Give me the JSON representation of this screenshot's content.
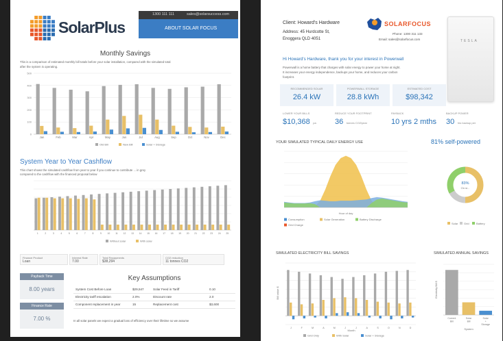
{
  "left": {
    "logo": {
      "text": "SolarPlus"
    },
    "contact": {
      "phone": "1300 111 111",
      "email": "sales@solarsuccess.com",
      "about": "ABOUT SOLAR FOCUS"
    },
    "monthly": {
      "title": "Monthly Savings",
      "desc1": "This is a comparison of estimated monthly bill totals before your solar installation, compared with the simulated total",
      "desc2": "after the system is operating.",
      "chart_data": {
        "type": "bar",
        "categories": [
          "Jan",
          "Feb",
          "Mar",
          "Apr",
          "May",
          "Jun",
          "Jul",
          "Aug",
          "Sep",
          "Oct",
          "Nov",
          "Dec"
        ],
        "ylim": [
          0,
          500
        ],
        "ticks": [
          "0",
          "100",
          "200",
          "300",
          "400",
          "500"
        ],
        "series": [
          {
            "name": "Old Bill",
            "color": "#a9a9a9",
            "values": [
              412,
              380,
              365,
              352,
              395,
              405,
              410,
              380,
              372,
              385,
              390,
              410
            ]
          },
          {
            "name": "New Bill",
            "color": "#e8c067",
            "values": [
              68,
              55,
              50,
              70,
              120,
              150,
              160,
              120,
              70,
              60,
              55,
              62
            ]
          },
          {
            "name": "Solar + Storage",
            "color": "#4a8fd0",
            "values": [
              25,
              20,
              18,
              22,
              38,
              48,
              52,
              35,
              20,
              16,
              18,
              22
            ]
          }
        ]
      }
    },
    "cashflow": {
      "title": "System Year to Year Cashflow",
      "desc1": "This chart shows the simulated cashflow from year to year if you continue to contribute ... in grey",
      "desc2": "compared to the cashflow with the financed proposal below",
      "chart_data": {
        "type": "bar",
        "categories": [
          "1",
          "2",
          "3",
          "4",
          "5",
          "6",
          "7",
          "8",
          "9",
          "10",
          "11",
          "12",
          "13",
          "14",
          "15",
          "16",
          "17",
          "18",
          "19",
          "20",
          "21",
          "22",
          "23",
          "24",
          "25"
        ],
        "ylim": [
          0,
          9
        ],
        "series": [
          {
            "name": "Without solar",
            "color": "#a9a9a9",
            "values": [
              5.8,
              5.9,
              6.0,
              6.1,
              6.2,
              6.3,
              6.4,
              6.5,
              6.6,
              6.7,
              6.8,
              6.9,
              7.0,
              7.1,
              7.2,
              7.3,
              7.4,
              7.5,
              7.6,
              7.7,
              7.8,
              7.9,
              8.0,
              8.1,
              8.2
            ]
          },
          {
            "name": "With solar",
            "color": "#e8c067",
            "values": [
              5.9,
              5.9,
              5.8,
              5.8,
              5.8,
              5.7,
              5.8,
              5.6,
              1.0,
              1.0,
              1.0,
              1.0,
              1.0,
              1.0,
              1.0,
              1.0,
              1.0,
              1.0,
              1.0,
              1.0,
              1.0,
              1.0,
              1.0,
              1.0,
              1.0
            ]
          }
        ]
      }
    },
    "summary": [
      {
        "label": "Finance Product",
        "value": "Loan"
      },
      {
        "label": "Interest Rate",
        "value": "7.00"
      },
      {
        "label": "Total Repayments",
        "value": "$38,294"
      },
      {
        "label": "CO2 reduction",
        "value": "11 tonnes CO2"
      }
    ],
    "payback_box": {
      "label": "Payback Time",
      "value": "8.00 years"
    },
    "rate_box": {
      "label": "Finance Rate",
      "value": "7.00 %"
    },
    "assumptions": {
      "title": "Key Assumptions",
      "rows": [
        {
          "c1": "System Cost Before Loan",
          "c2": "$29,547",
          "c3": "Solar Feed in Tariff",
          "c4": "0.10"
        },
        {
          "c1": "Electricity tariff escalation",
          "c2": "2.0%",
          "c3": "Discount rate",
          "c4": "2.0"
        },
        {
          "c1": "Component replacement in year",
          "c2": "15",
          "c3": "Replacement cost",
          "c4": "$3,600"
        }
      ],
      "note": "In all solar panels we expect a gradual loss of efficiency over their lifetime so we assume"
    }
  },
  "right": {
    "client": "Client: Howard's Hardware",
    "address1": "Address: 45 Hurdcotte St,",
    "address2": "Enoggera QLD 4051",
    "brand": "SOLARFOCUS",
    "phone": "Phone: 1300 311 133",
    "email": "Email: sales@solarfocus.com",
    "product": "TESLA",
    "greeting": "Hi Howard's Hardware, thank you for your interest in Powerwall",
    "intro1": "Powerwall is a home battery that charges with solar energy to power your home at night.",
    "intro2": "It increases your energy independence, backups your home, and reduces your carbon",
    "intro3": "footprint.",
    "metrics1": [
      {
        "label": "RECOMMENDED SOLAR",
        "value": "26.4 kW"
      },
      {
        "label": "POWERWALL STORAGE",
        "value": "28.8 kWh"
      },
      {
        "label": "ESTIMATED COST",
        "value": "$98,342"
      }
    ],
    "metrics2": [
      {
        "label": "LOWER YOUR BILLS",
        "value": "$10,368",
        "unit": "pa"
      },
      {
        "label": "REDUCE YOUR FOOTPRINT",
        "value": "36",
        "unit": "tonnes CO2/year"
      },
      {
        "label": "PAYBACK",
        "value": "10 yrs 2 mths",
        "unit": ""
      },
      {
        "label": "BACKUP POWER",
        "value": "30",
        "unit": "hrs backup per"
      }
    ],
    "energy": {
      "title": "YOUR SIMULATED TYPICAL DAILY ENERGY USE",
      "selfpowered": "81% self-powered",
      "xlabel": "Hour of day",
      "legend": [
        "Consumption",
        "Solar Generation",
        "Battery Discharge",
        "Grid Charge"
      ],
      "chart_data": {
        "type": "area",
        "x": [
          0,
          1,
          2,
          3,
          4,
          5,
          6,
          7,
          8,
          9,
          10,
          11,
          12,
          13,
          14,
          15,
          16,
          17,
          18,
          19,
          20,
          21,
          22,
          23,
          24
        ],
        "xlim": [
          0,
          24
        ],
        "ylim": [
          0,
          25
        ],
        "series": [
          {
            "name": "Solar Generation",
            "color": "#f0c04a",
            "values": [
              0,
              0,
              0,
              0,
              0,
              0,
              0.5,
              3,
              8,
              14,
              19,
              22,
              23,
              22,
              19,
              14,
              8,
              3,
              0.5,
              0,
              0,
              0,
              0,
              0,
              0
            ]
          },
          {
            "name": "Consumption",
            "color": "#7aaee0",
            "values": [
              2.5,
              2.2,
              2.0,
              2.0,
              2.0,
              2.2,
              2.8,
              3.2,
              3.0,
              2.8,
              2.8,
              3.0,
              3.0,
              3.0,
              3.2,
              3.4,
              3.6,
              4.2,
              4.6,
              4.4,
              4.0,
              3.6,
              3.2,
              2.8,
              2.5
            ]
          },
          {
            "name": "Battery Discharge",
            "color": "#8fcf6a",
            "values": [
              2.2,
              2.0,
              1.8,
              1.8,
              1.8,
              1.9,
              1.5,
              0,
              0,
              0,
              0,
              0,
              0,
              0,
              0,
              0,
              0,
              2,
              3.5,
              4,
              3.6,
              3.2,
              2.8,
              2.4,
              2.2
            ]
          }
        ]
      },
      "donut": {
        "label": "83%",
        "sub": "On si...",
        "legend": [
          "Solar",
          "Grid",
          "Battery"
        ],
        "values": [
          50,
          17,
          33
        ],
        "colors": [
          "#e8c067",
          "#cccccc",
          "#8fcf6a"
        ]
      }
    },
    "billsavings": {
      "title": "SIMULATED ELECTRICITY BILL SAVINGS",
      "xlabel": "Month",
      "ylabel": "Bill value $",
      "legend": [
        "Grid Only",
        "With Solar",
        "Solar + Storage"
      ],
      "chart_data": {
        "type": "bar",
        "categories": [
          "J",
          "F",
          "M",
          "A",
          "M",
          "J",
          "J",
          "A",
          "S",
          "O",
          "N",
          "D"
        ],
        "ylim": [
          -1,
          6
        ],
        "series": [
          {
            "name": "Grid Only",
            "color": "#a9a9a9",
            "values": [
              5.2,
              5.0,
              4.8,
              4.6,
              4.4,
              4.2,
              4.4,
              4.6,
              4.8,
              5.0,
              5.1,
              5.2
            ]
          },
          {
            "name": "With Solar",
            "color": "#e8c067",
            "values": [
              1.5,
              1.3,
              1.4,
              1.8,
              2.0,
              2.1,
              2.0,
              1.8,
              1.6,
              1.5,
              1.4,
              1.5
            ]
          },
          {
            "name": "Solar + Storage",
            "color": "#4a8fd0",
            "values": [
              -0.4,
              -0.3,
              -0.2,
              -0.3,
              0.3,
              0.4,
              0.3,
              -0.2,
              -0.3,
              -0.4,
              -0.3,
              -0.2
            ]
          }
        ]
      }
    },
    "annual": {
      "title": "SIMULATED ANNUAL SAVINGS",
      "ylabel": "Electricity Bill $",
      "xlabel": "System",
      "chart_data": {
        "type": "bar",
        "categories": [
          "Current Bill",
          "Solar Bill",
          "Solar + Storage"
        ],
        "ylim": [
          0,
          18
        ],
        "values": [
          16,
          4.5,
          1.5
        ],
        "colors": [
          "#a9a9a9",
          "#e8c067",
          "#4a8fd0"
        ]
      }
    }
  }
}
